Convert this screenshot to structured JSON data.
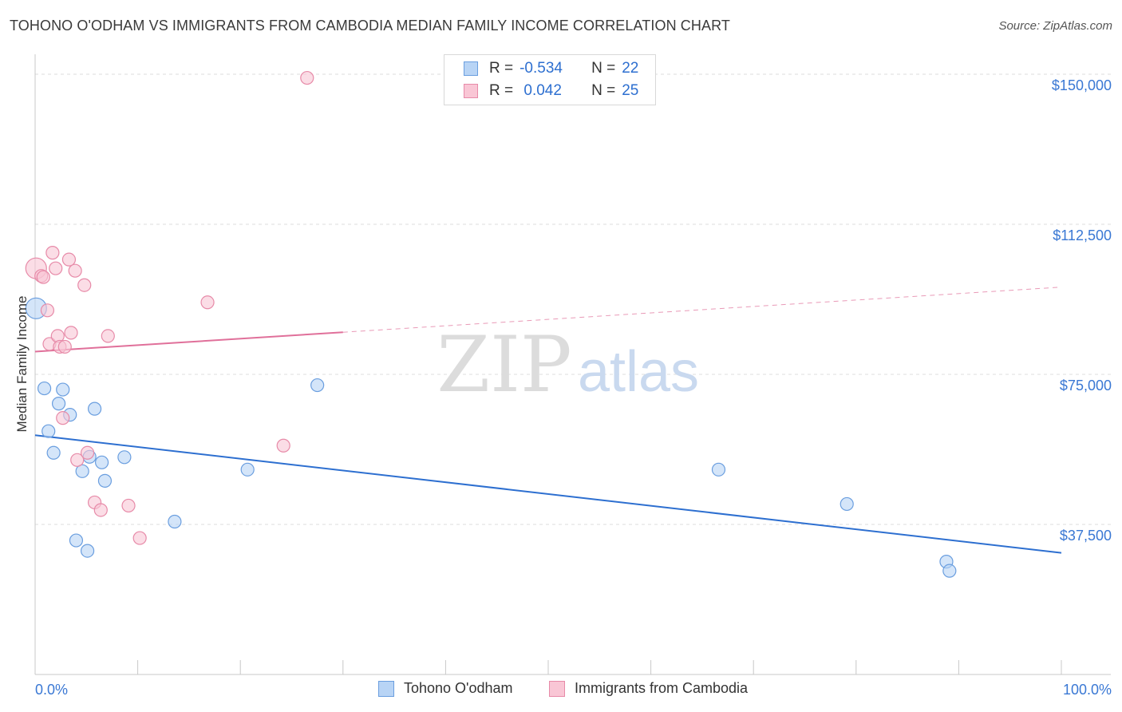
{
  "title": "TOHONO O'ODHAM VS IMMIGRANTS FROM CAMBODIA MEDIAN FAMILY INCOME CORRELATION CHART",
  "source": "Source: ZipAtlas.com",
  "watermark": {
    "zip": "ZIP",
    "atlas": "atlas"
  },
  "legend_top": [
    {
      "r_label": "R =",
      "r_value": "-0.534",
      "n_label": "N =",
      "n_value": "22"
    },
    {
      "r_label": "R =",
      "r_value": " 0.042",
      "n_label": "N =",
      "n_value": "25"
    }
  ],
  "legend_bottom": [
    "Tohono O'odham",
    "Immigrants from Cambodia"
  ],
  "colors": {
    "blue_fill": "#b8d4f5",
    "blue_stroke": "#6a9edf",
    "blue_line": "#2d6fd0",
    "pink_fill": "#f9c6d5",
    "pink_stroke": "#e78aa8",
    "pink_line": "#e0709a",
    "tick_text": "#3a78d4",
    "grid": "#dcdcdc"
  },
  "chart_data": {
    "type": "scatter",
    "title": "TOHONO O'ODHAM VS IMMIGRANTS FROM CAMBODIA MEDIAN FAMILY INCOME CORRELATION CHART",
    "xlabel": "",
    "ylabel": "Median Family Income",
    "xlim": [
      0,
      100
    ],
    "ylim": [
      0,
      153000
    ],
    "x_tick_labels": [
      "0.0%",
      "100.0%"
    ],
    "y_ticks": [
      37500,
      75000,
      112500,
      150000
    ],
    "y_tick_labels": [
      "$37,500",
      "$75,000",
      "$112,500",
      "$150,000"
    ],
    "series": [
      {
        "name": "Tohono O'odham",
        "color": "blue",
        "R": -0.534,
        "N": 22,
        "trend": {
          "x0": 0,
          "y0": 59800,
          "x1": 100,
          "y1": 30400,
          "solid_to": 100
        },
        "points": [
          {
            "x": 0.1,
            "y": 91500,
            "big": true
          },
          {
            "x": 0.9,
            "y": 71500
          },
          {
            "x": 1.3,
            "y": 60800
          },
          {
            "x": 1.8,
            "y": 55400
          },
          {
            "x": 2.3,
            "y": 67700
          },
          {
            "x": 2.7,
            "y": 71200
          },
          {
            "x": 3.4,
            "y": 64900
          },
          {
            "x": 4.0,
            "y": 33500
          },
          {
            "x": 4.6,
            "y": 50800
          },
          {
            "x": 5.1,
            "y": 30900
          },
          {
            "x": 5.3,
            "y": 54400
          },
          {
            "x": 5.8,
            "y": 66400
          },
          {
            "x": 6.5,
            "y": 53000
          },
          {
            "x": 6.8,
            "y": 48400
          },
          {
            "x": 8.7,
            "y": 54300
          },
          {
            "x": 13.6,
            "y": 38200
          },
          {
            "x": 20.7,
            "y": 51200
          },
          {
            "x": 27.5,
            "y": 72300
          },
          {
            "x": 66.6,
            "y": 51200
          },
          {
            "x": 79.1,
            "y": 42600
          },
          {
            "x": 88.8,
            "y": 28200
          },
          {
            "x": 89.1,
            "y": 25900
          }
        ]
      },
      {
        "name": "Immigrants from Cambodia",
        "color": "pink",
        "R": 0.042,
        "N": 25,
        "trend": {
          "x0": 0,
          "y0": 80700,
          "x1": 100,
          "y1": 96800,
          "solid_to": 30
        },
        "points": [
          {
            "x": 0.1,
            "y": 101500,
            "big": true
          },
          {
            "x": 0.6,
            "y": 99600
          },
          {
            "x": 0.8,
            "y": 99300
          },
          {
            "x": 1.2,
            "y": 91000
          },
          {
            "x": 1.4,
            "y": 82600
          },
          {
            "x": 1.7,
            "y": 105400
          },
          {
            "x": 2.0,
            "y": 101500
          },
          {
            "x": 2.2,
            "y": 84600
          },
          {
            "x": 2.4,
            "y": 81900
          },
          {
            "x": 2.7,
            "y": 64100
          },
          {
            "x": 2.9,
            "y": 81900
          },
          {
            "x": 3.3,
            "y": 103700
          },
          {
            "x": 3.5,
            "y": 85400
          },
          {
            "x": 3.9,
            "y": 100900
          },
          {
            "x": 4.1,
            "y": 53600
          },
          {
            "x": 4.8,
            "y": 97300
          },
          {
            "x": 5.1,
            "y": 55400
          },
          {
            "x": 5.8,
            "y": 43000
          },
          {
            "x": 6.4,
            "y": 41100
          },
          {
            "x": 7.1,
            "y": 84600
          },
          {
            "x": 9.1,
            "y": 42200
          },
          {
            "x": 10.2,
            "y": 34100
          },
          {
            "x": 16.8,
            "y": 93000
          },
          {
            "x": 24.2,
            "y": 57200
          },
          {
            "x": 26.5,
            "y": 149100
          }
        ]
      }
    ]
  }
}
